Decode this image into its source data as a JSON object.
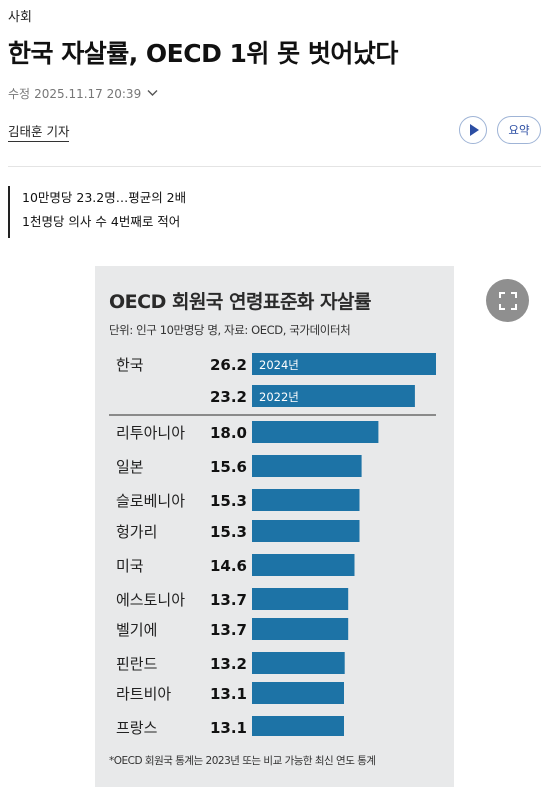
{
  "section": "사회",
  "headline": "한국 자살률, OECD 1위 못 벗어났다",
  "meta": {
    "label": "수정",
    "timestamp": "2025.11.17 20:39"
  },
  "author": "김태훈 기자",
  "buttons": {
    "play_icon": "play-icon",
    "summary_label": "요약",
    "expand_icon": "expand-icon"
  },
  "subheads": [
    "10만명당 23.2명…평균의 2배",
    "1천명당 의사 수 4번째로 적어"
  ],
  "colors": {
    "bar": "#1d73a6",
    "background": "#e8e9ea",
    "accent": "#2c4ea3"
  },
  "infographic": {
    "title": "OECD 회원국 연령표준화 자살률",
    "subtitle": "단위: 인구 10만명당 명, 자료: OECD, 국가데이터처",
    "footnote": "*OECD 회원국 통계는 2023년 또는 비교 가능한 최신 연도 통계"
  },
  "chart_data": {
    "type": "bar",
    "orientation": "horizontal",
    "title": "OECD 회원국 연령표준화 자살률",
    "subtitle": "단위: 인구 10만명당 명, 자료: OECD, 국가데이터처",
    "rows": [
      {
        "category": "한국",
        "value": 26.2,
        "bar_label": "2024년"
      },
      {
        "category": "",
        "value": 23.2,
        "bar_label": "2022년"
      },
      {
        "category": "리투아니아",
        "value": 18.0,
        "bar_label": ""
      },
      {
        "category": "일본",
        "value": 15.6,
        "bar_label": ""
      },
      {
        "category": "슬로베니아",
        "value": 15.3,
        "bar_label": ""
      },
      {
        "category": "헝가리",
        "value": 15.3,
        "bar_label": ""
      },
      {
        "category": "미국",
        "value": 14.6,
        "bar_label": ""
      },
      {
        "category": "에스토니아",
        "value": 13.7,
        "bar_label": ""
      },
      {
        "category": "벨기에",
        "value": 13.7,
        "bar_label": ""
      },
      {
        "category": "핀란드",
        "value": 13.2,
        "bar_label": ""
      },
      {
        "category": "라트비아",
        "value": 13.1,
        "bar_label": ""
      },
      {
        "category": "프랑스",
        "value": 13.1,
        "bar_label": ""
      }
    ],
    "value_labels": [
      "26.2",
      "23.2",
      "18.0",
      "15.6",
      "15.3",
      "15.3",
      "14.6",
      "13.7",
      "13.7",
      "13.2",
      "13.1",
      "13.1"
    ],
    "xlim": [
      0,
      26.2
    ],
    "grid": false,
    "legend": "none"
  }
}
